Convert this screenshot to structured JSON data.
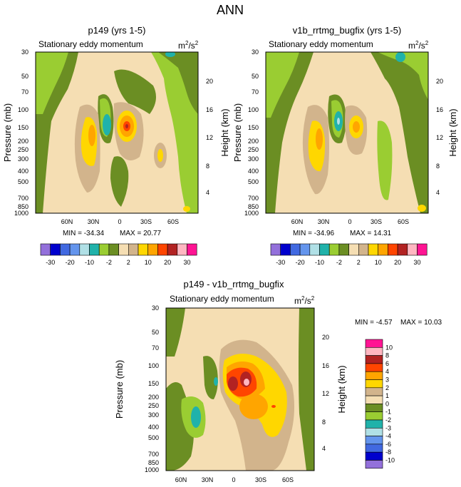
{
  "figure_title": "ANN",
  "chart_data": [
    {
      "type": "contour",
      "title": "p149 (yrs 1-5)",
      "subtitle": "Stationary eddy momentum",
      "units_base": "m",
      "units_exp1": "2",
      "units_mid": "/s",
      "units_exp2": "2",
      "ylabel": "Pressure (mb)",
      "ylabel_right": "Height (km)",
      "pressure_ticks": [
        "30",
        "50",
        "70",
        "100",
        "150",
        "200",
        "250",
        "300",
        "400",
        "500",
        "700",
        "850",
        "1000"
      ],
      "height_ticks": [
        "20",
        "16",
        "12",
        "8",
        "4"
      ],
      "lat_ticks": [
        "60N",
        "30N",
        "0",
        "30S",
        "60S"
      ],
      "min_label": "MIN = -34.34",
      "max_label": "MAX =  20.77",
      "min": -34.34,
      "max": 20.77
    },
    {
      "type": "contour",
      "title": "v1b_rrtmg_bugfix (yrs 1-5)",
      "subtitle": "Stationary eddy momentum",
      "units_base": "m",
      "units_exp1": "2",
      "units_mid": "/s",
      "units_exp2": "2",
      "ylabel": "Pressure (mb)",
      "ylabel_right": "Height (km)",
      "pressure_ticks": [
        "30",
        "50",
        "70",
        "100",
        "150",
        "200",
        "250",
        "300",
        "400",
        "500",
        "700",
        "850",
        "1000"
      ],
      "height_ticks": [
        "20",
        "16",
        "12",
        "8",
        "4"
      ],
      "lat_ticks": [
        "60N",
        "30N",
        "0",
        "30S",
        "60S"
      ],
      "min_label": "MIN = -34.96",
      "max_label": "MAX =  14.31",
      "min": -34.96,
      "max": 14.31
    },
    {
      "type": "contour",
      "title": "p149 - v1b_rrtmg_bugfix",
      "subtitle": "Stationary eddy momentum",
      "units_base": "m",
      "units_exp1": "2",
      "units_mid": "/s",
      "units_exp2": "2",
      "ylabel": "Pressure (mb)",
      "ylabel_right": "Height (km)",
      "pressure_ticks": [
        "30",
        "50",
        "70",
        "100",
        "150",
        "200",
        "250",
        "300",
        "400",
        "500",
        "700",
        "850",
        "1000"
      ],
      "height_ticks": [
        "20",
        "16",
        "12",
        "8",
        "4"
      ],
      "lat_ticks": [
        "60N",
        "30N",
        "0",
        "30S",
        "60S"
      ],
      "min_label": "MIN =  -4.57",
      "max_label": "MAX =  10.03",
      "min": -4.57,
      "max": 10.03
    }
  ],
  "colorbar_top": {
    "labels": [
      "-30",
      "-20",
      "-10",
      "-2",
      "2",
      "10",
      "20",
      "30"
    ],
    "colors": [
      "#9370db",
      "#0000cd",
      "#4169e1",
      "#6495ed",
      "#b0e0e6",
      "#20b2aa",
      "#9acd32",
      "#6b8e23",
      "#f5deb3",
      "#d2b48c",
      "#ffd700",
      "#ffa500",
      "#ff4500",
      "#b22222",
      "#ffb6c1",
      "#ff1493"
    ]
  },
  "colorbar_diff": {
    "labels": [
      "10",
      "8",
      "6",
      "4",
      "3",
      "2",
      "1",
      "0",
      "-1",
      "-2",
      "-3",
      "-4",
      "-6",
      "-8",
      "-10"
    ],
    "colors": [
      "#ff1493",
      "#ffb6c1",
      "#b22222",
      "#ff4500",
      "#ffa500",
      "#ffd700",
      "#d2b48c",
      "#f5deb3",
      "#6b8e23",
      "#9acd32",
      "#20b2aa",
      "#b0e0e6",
      "#6495ed",
      "#4169e1",
      "#0000cd",
      "#9370db"
    ]
  }
}
